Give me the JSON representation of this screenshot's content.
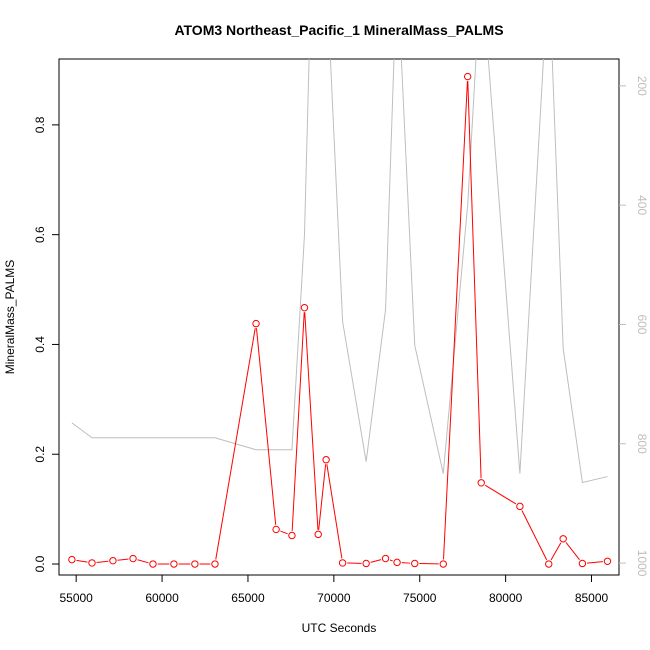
{
  "chart_data": {
    "type": "line",
    "title": "ATOM3 Northeast_Pacific_1 MineralMass_PALMS",
    "xlabel": "UTC Seconds",
    "ylabel": "MineralMass_PALMS",
    "xlim": [
      54000,
      86600
    ],
    "ylim": [
      -0.02,
      0.92
    ],
    "xticks": [
      55000,
      60000,
      65000,
      70000,
      75000,
      80000,
      85000
    ],
    "yticks": [
      0.0,
      0.2,
      0.4,
      0.6,
      0.8
    ],
    "y2ticks": [
      200,
      400,
      600,
      800,
      1000
    ],
    "y2lim": [
      1020,
      155
    ],
    "y2_reversed": true,
    "series": [
      {
        "name": "",
        "color": "#ff0000",
        "marker": "open-circle",
        "x": [
          54750,
          55920,
          57140,
          58310,
          59470,
          60690,
          61910,
          63080,
          65470,
          66640,
          67560,
          68290,
          69090,
          69550,
          70510,
          71880,
          73010,
          73680,
          74710,
          76370,
          77790,
          78580,
          80830,
          82510,
          83350,
          84470,
          85930
        ],
        "y": [
          0.008,
          0.002,
          0.006,
          0.01,
          0.0,
          0.0,
          0.0,
          0.0,
          0.438,
          0.063,
          0.052,
          0.467,
          0.054,
          0.19,
          0.002,
          0.001,
          0.01,
          0.003,
          0.001,
          0.0,
          0.888,
          0.148,
          0.105,
          0.0,
          0.046,
          0.001,
          0.005
        ]
      },
      {
        "name": "",
        "color": "#bebebe",
        "axis": "right",
        "x": [
          54750,
          55920,
          57500,
          59500,
          61500,
          63080,
          65470,
          66640,
          67560,
          68290,
          68700,
          69550,
          70510,
          71880,
          73010,
          73680,
          74710,
          76370,
          77790,
          78580,
          80830,
          82510,
          83350,
          84470,
          85930
        ],
        "y": [
          765,
          790,
          790,
          790,
          790,
          790,
          810,
          810,
          810,
          450,
          0,
          0,
          595,
          830,
          575,
          0,
          635,
          850,
          400,
          0,
          850,
          0,
          640,
          865,
          855
        ]
      }
    ]
  }
}
